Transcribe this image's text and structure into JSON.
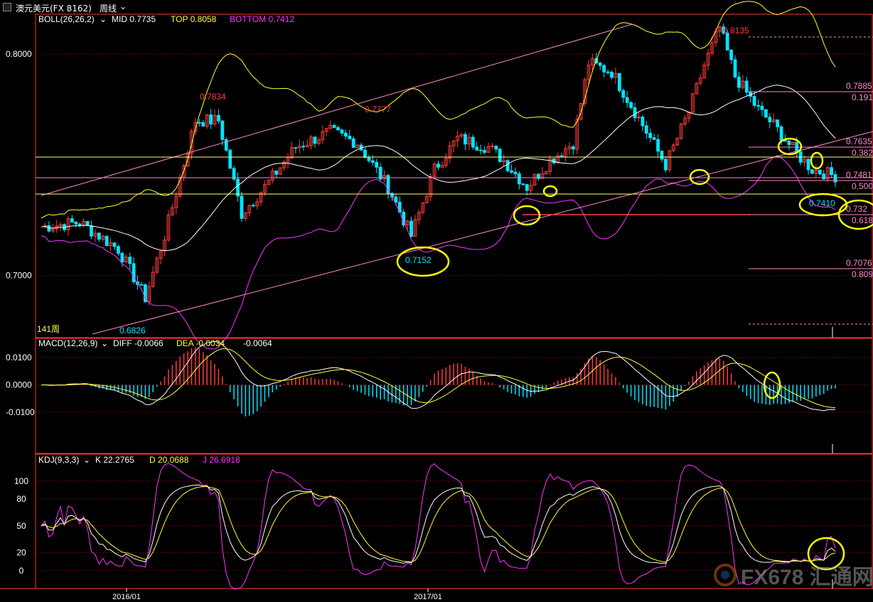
{
  "window": {
    "title": "澳元美元(FX 8162)",
    "period": "周线"
  },
  "colors": {
    "up": "#ff3b3b",
    "down": "#00e5ff",
    "mid": "#ffffff",
    "top": "#ffff33",
    "bottom": "#ff33ff",
    "grid": "#7a0000",
    "pink": "#ff88cc",
    "yellow": "#ffff00",
    "axis": "#ff3333",
    "text": "#ffffff"
  },
  "price_panel": {
    "legend": {
      "name": "BOLL(26,26,2)",
      "mid_label": "MID 0.7735",
      "top_label": "TOP 0.8058",
      "bottom_label": "BOTTOM 0.7412"
    },
    "period_label": "141周",
    "annotations": [
      {
        "id": "hi1",
        "text": "0.7834"
      },
      {
        "id": "hi2",
        "text": "0.7777"
      },
      {
        "id": "hi3",
        "text": "0.8135"
      },
      {
        "id": "lo1",
        "text": "0.6826"
      },
      {
        "id": "lo2",
        "text": "0.7152"
      },
      {
        "id": "lo3",
        "text": "0.7410"
      }
    ],
    "fib_labels": [
      "0.7885",
      "0.191",
      "0.7635",
      "0.382",
      "0.7481",
      "0.500",
      "0.732",
      "0.618",
      "0.7076",
      "0.809"
    ]
  },
  "macd_panel": {
    "legend": {
      "name": "MACD(12,26,9)",
      "diff_label": "DIFF -0.0066",
      "dea_label": "DEA -0.0034",
      "macd_label": "-0.0064"
    }
  },
  "kdj_panel": {
    "legend": {
      "name": "KDJ(9,3,3)",
      "k_label": "K 22.2765",
      "d_label": "D 20.0688",
      "j_label": "J 26.6918"
    }
  },
  "watermark": "FX678 汇通网",
  "chart_data": [
    {
      "type": "candlestick",
      "title": "澳元美元(FX 8162) 周线",
      "x_labels": [
        "2016/01",
        "2017/01"
      ],
      "y_ticks": [
        0.8,
        0.7
      ],
      "ylim": [
        0.672,
        0.818
      ],
      "series": [
        {
          "name": "MID",
          "last": 0.7735
        },
        {
          "name": "TOP",
          "last": 0.8058
        },
        {
          "name": "BOTTOM",
          "last": 0.7412
        }
      ],
      "annotations": [
        {
          "label": "0.7834",
          "value": 0.7834,
          "kind": "high"
        },
        {
          "label": "0.7777",
          "value": 0.7777,
          "kind": "high"
        },
        {
          "label": "0.8135",
          "value": 0.8135,
          "kind": "high"
        },
        {
          "label": "0.6826",
          "value": 0.6826,
          "kind": "low"
        },
        {
          "label": "0.7152",
          "value": 0.7152,
          "kind": "low"
        },
        {
          "label": "0.7410",
          "value": 0.741,
          "kind": "low"
        }
      ],
      "fibonacci": [
        {
          "ratio": "0.191",
          "price": 0.7885
        },
        {
          "ratio": "0.382",
          "price": 0.7635
        },
        {
          "ratio": "0.500",
          "price": 0.7481
        },
        {
          "ratio": "0.618",
          "price": 0.732
        },
        {
          "ratio": "0.809",
          "price": 0.7076
        }
      ]
    },
    {
      "type": "bar",
      "title": "MACD(12,26,9)",
      "y_ticks": [
        0.01,
        0.0,
        -0.01
      ],
      "ylim": [
        -0.025,
        0.017
      ],
      "series": [
        {
          "name": "DIFF",
          "last": -0.0066
        },
        {
          "name": "DEA",
          "last": -0.0034
        },
        {
          "name": "MACD",
          "last": -0.0064
        }
      ]
    },
    {
      "type": "line",
      "title": "KDJ(9,3,3)",
      "y_ticks": [
        100,
        80,
        50,
        20,
        0
      ],
      "ylim": [
        -20,
        130
      ],
      "series": [
        {
          "name": "K",
          "last": 22.2765
        },
        {
          "name": "D",
          "last": 20.0688
        },
        {
          "name": "J",
          "last": 26.6918
        }
      ]
    }
  ]
}
